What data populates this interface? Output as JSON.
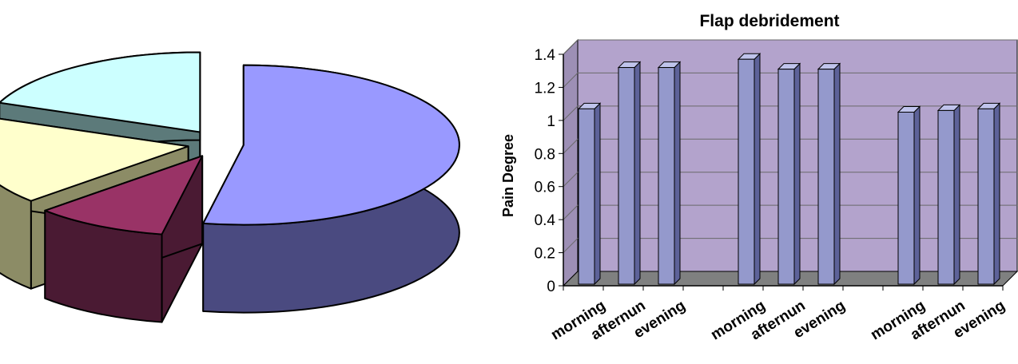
{
  "chart_data": [
    {
      "type": "pie",
      "style": "3d-exploded",
      "slices": [
        {
          "value": 53,
          "color": "#9999ff",
          "side_color": "#4a4a80"
        },
        {
          "value": 10,
          "color": "#993366",
          "side_color": "#4a1a33"
        },
        {
          "value": 18,
          "color": "#ffffcc",
          "side_color": "#8c8c66"
        },
        {
          "value": 19,
          "color": "#ccffff",
          "side_color": "#5c7a7a"
        }
      ]
    },
    {
      "type": "bar",
      "style": "3d-column",
      "title": "Flap debridement",
      "ylabel": "Pain Degree",
      "xlabel": "",
      "ylim": [
        0,
        1.4
      ],
      "yticks": [
        "0",
        "0.2",
        "0.4",
        "0.6",
        "0.8",
        "1",
        "1.2",
        "1.4"
      ],
      "grid": true,
      "categories": [
        "morning",
        "afternun",
        "evening",
        "",
        "morning",
        "afternun",
        "evening",
        "",
        "morning",
        "afternun",
        "evening"
      ],
      "values": [
        1.07,
        1.32,
        1.32,
        null,
        1.37,
        1.31,
        1.31,
        null,
        1.05,
        1.06,
        1.07
      ],
      "colors": {
        "plot_bg": "#b3a3cc",
        "floor": "#7f8080",
        "bar_front": "#9499cc",
        "bar_side": "#5d6299",
        "bar_top": "#c0c4ec",
        "grid": "#6a6a6a"
      }
    }
  ]
}
